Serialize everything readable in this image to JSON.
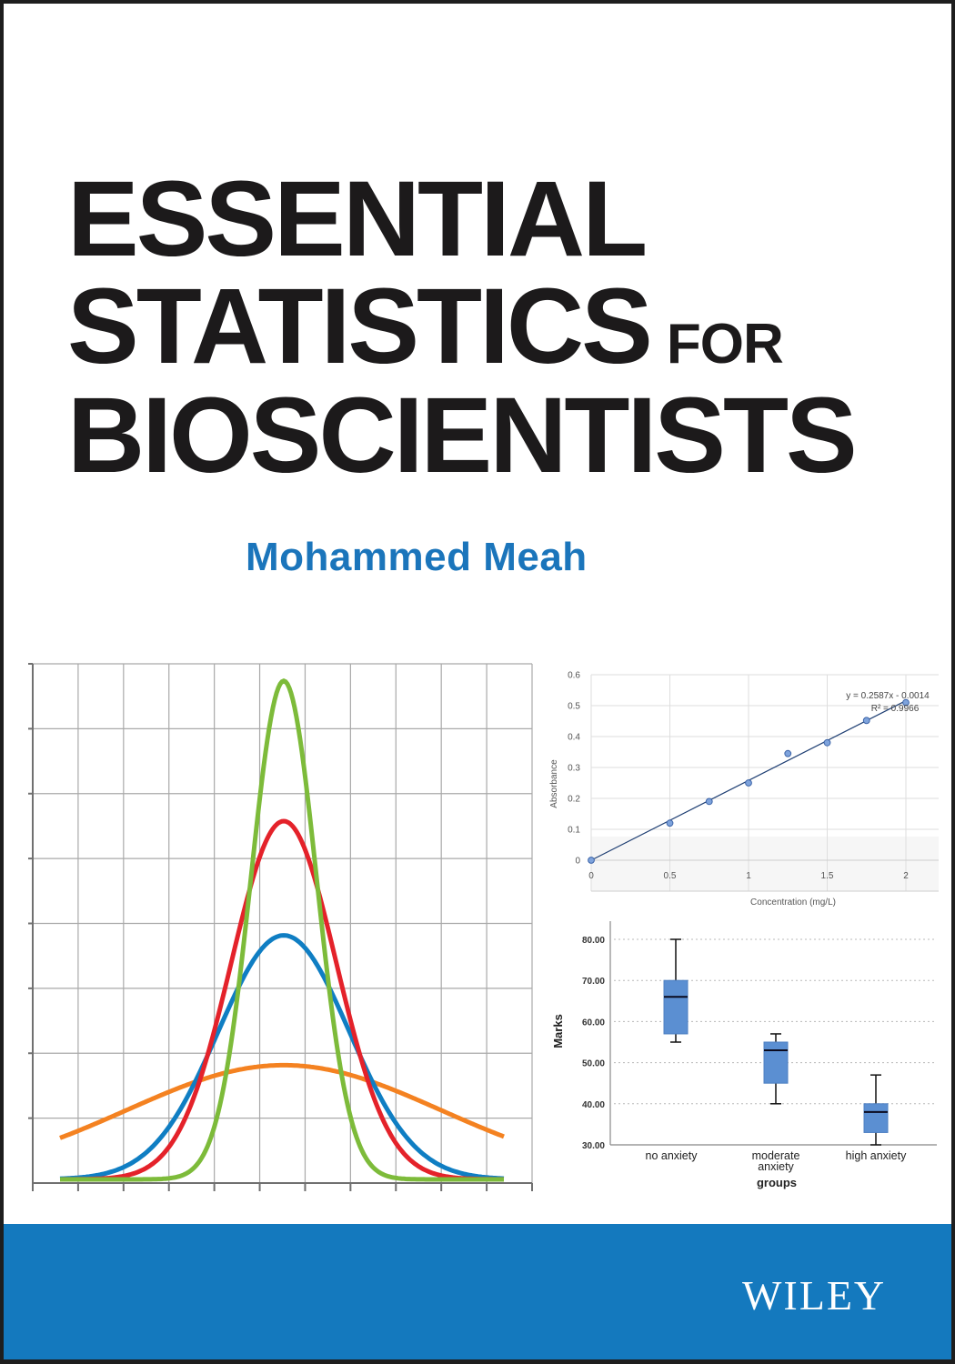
{
  "cover": {
    "title_lines": [
      "ESSENTIAL",
      "STATISTICS",
      "BIOSCIENTISTS"
    ],
    "title_connector": "FOR",
    "author": "Mohammed Meah",
    "publisher": "WILEY",
    "colors": {
      "title": "#1c1a1b",
      "author": "#1b75bb",
      "band": "#1479be",
      "border": "#1e1e1e"
    }
  },
  "chart_data": [
    {
      "type": "line",
      "title": "",
      "xlabel": "",
      "ylabel": "",
      "grid": true,
      "description": "Four normal distribution curves sharing the same mean with different standard deviations",
      "x_ticks_count": 11,
      "y_ticks_count": 8,
      "series": [
        {
          "name": "green",
          "color": "#7dbb3a",
          "mean": 0,
          "relative_sd": 0.5,
          "relative_peak": 0.96
        },
        {
          "name": "red",
          "color": "#e4222a",
          "mean": 0,
          "relative_sd": 0.8,
          "relative_peak": 0.69
        },
        {
          "name": "blue",
          "color": "#0f7ec3",
          "mean": 0,
          "relative_sd": 1.0,
          "relative_peak": 0.47
        },
        {
          "name": "orange",
          "color": "#f48221",
          "mean": 0,
          "relative_sd": 2.4,
          "relative_peak": 0.22
        }
      ]
    },
    {
      "type": "scatter",
      "title": "",
      "xlabel": "Concentration (mg/L)",
      "ylabel": "Absorbance",
      "xlim": [
        0,
        2.2
      ],
      "ylim": [
        0,
        0.6
      ],
      "x_ticks": [
        "0",
        "0.5",
        "1",
        "1.5",
        "2"
      ],
      "y_ticks": [
        "0",
        "0.1",
        "0.2",
        "0.3",
        "0.4",
        "0.5",
        "0.6"
      ],
      "grid": true,
      "x": [
        0,
        0.5,
        0.75,
        1.0,
        1.25,
        1.5,
        1.75,
        2.0
      ],
      "y": [
        0.0,
        0.12,
        0.19,
        0.25,
        0.345,
        0.38,
        0.452,
        0.51
      ],
      "trendline": {
        "equation": "y = 0.2587x - 0.0014",
        "r_squared": "R² = 0.9966",
        "slope": 0.2587,
        "intercept": -0.0014
      }
    },
    {
      "type": "box",
      "title": "",
      "xlabel": "groups",
      "ylabel": "Marks",
      "ylim": [
        30,
        80
      ],
      "y_ticks": [
        "30.00",
        "40.00",
        "50.00",
        "60.00",
        "70.00",
        "80.00"
      ],
      "categories": [
        "no anxiety",
        "moderate anxiety",
        "high anxiety"
      ],
      "category_labels": [
        [
          "no anxiety"
        ],
        [
          "moderate",
          "anxiety"
        ],
        [
          "high anxiety"
        ]
      ],
      "series": [
        {
          "name": "no anxiety",
          "min": 55,
          "q1": 57,
          "median": 66,
          "q3": 70,
          "max": 80
        },
        {
          "name": "moderate anxiety",
          "min": 40,
          "q1": 45,
          "median": 53,
          "q3": 55,
          "max": 57
        },
        {
          "name": "high anxiety",
          "min": 30,
          "q1": 33,
          "median": 38,
          "q3": 40,
          "max": 47
        }
      ],
      "box_color": "#5b8fd2"
    }
  ]
}
